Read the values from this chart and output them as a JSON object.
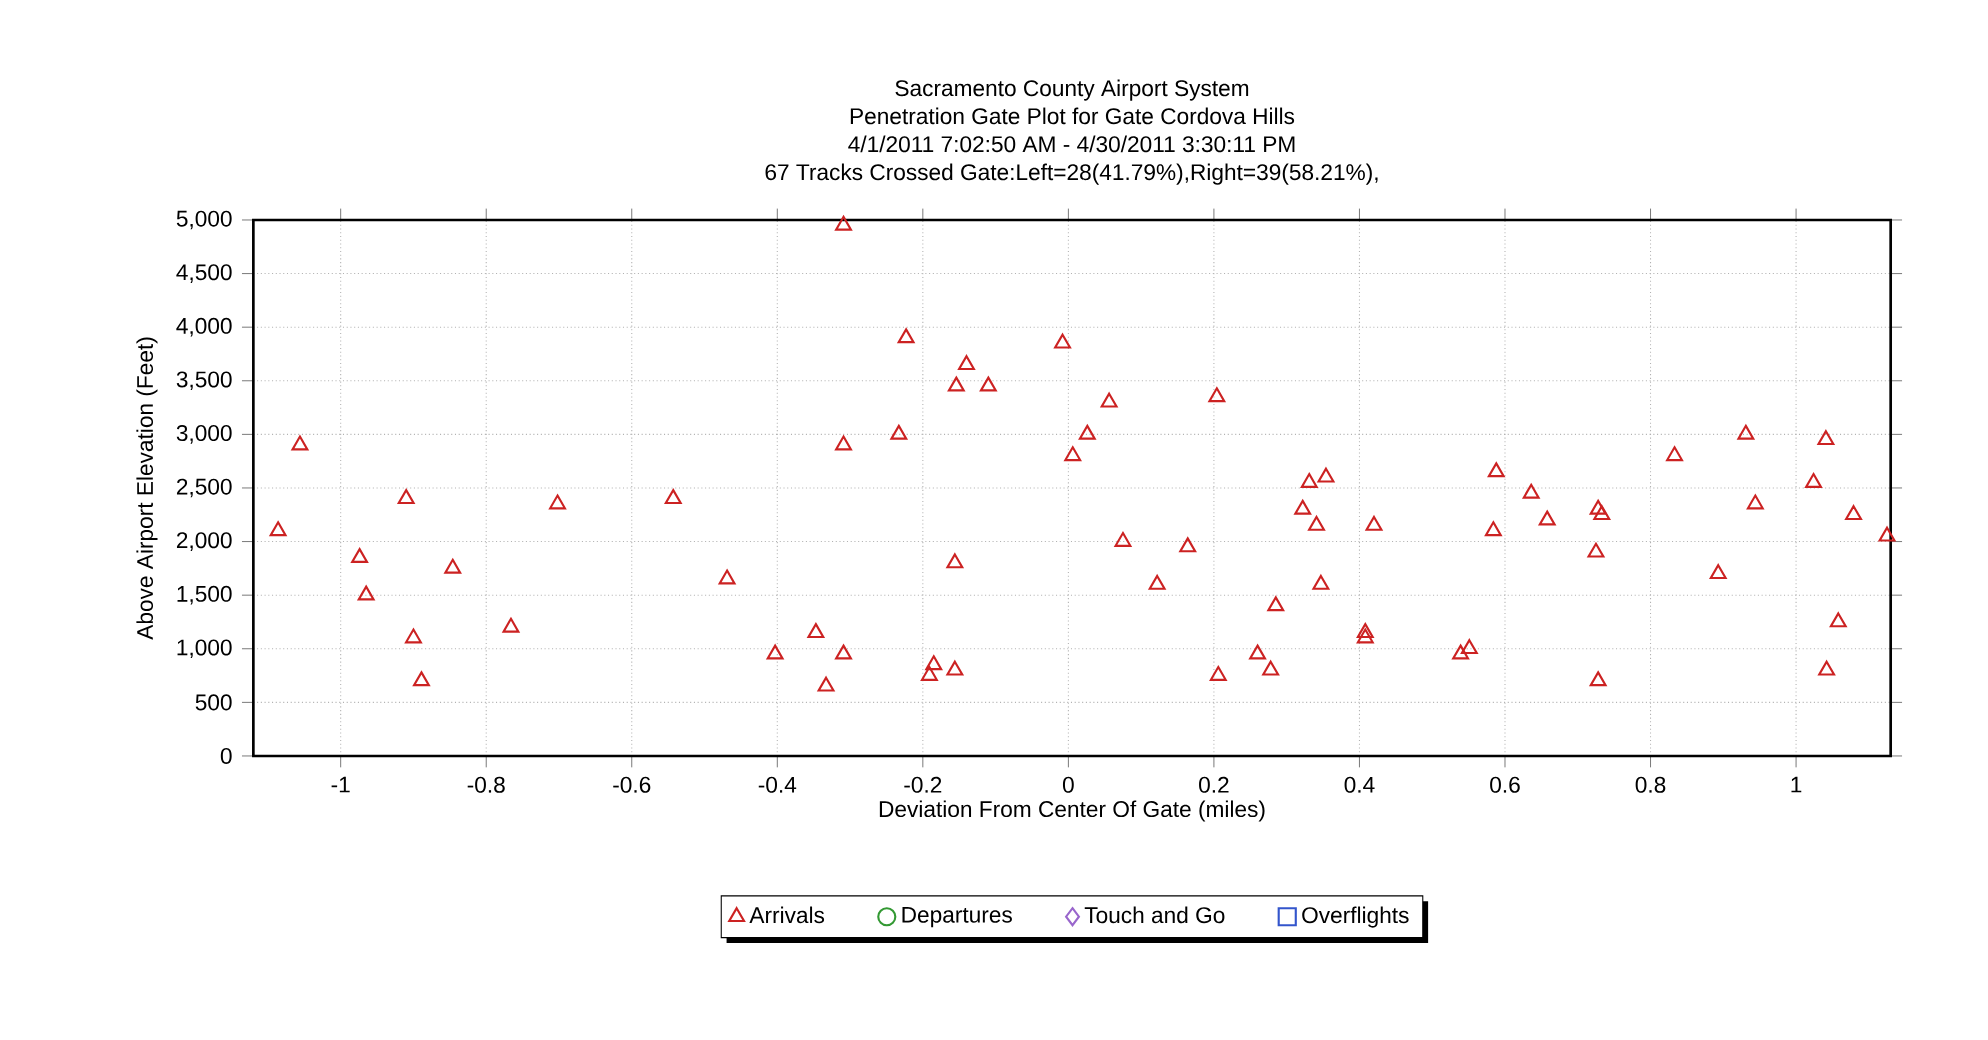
{
  "chart_data": {
    "type": "scatter",
    "title": "Sacramento County Airport System",
    "subtitle": "Penetration Gate Plot for Gate Cordova Hills",
    "annotations": [
      "4/1/2011 7:02:50 AM - 4/30/2011 3:30:11 PM",
      "67 Tracks Crossed Gate:Left=28(41.79%),Right=39(58.21%),"
    ],
    "xlabel": "Deviation From Center Of Gate (miles)",
    "ylabel": "Above Airport Elevation (Feet)",
    "xlim": [
      -1.12,
      1.13
    ],
    "ylim": [
      0,
      5000
    ],
    "xticks": [
      -1,
      -0.8,
      -0.6,
      -0.4,
      -0.2,
      0,
      0.2,
      0.4,
      0.6,
      0.8,
      1
    ],
    "yticks": [
      0,
      500,
      {
        "value": 1000,
        "label": "1,000"
      },
      {
        "value": 1500,
        "label": "1,500"
      },
      {
        "value": 2000,
        "label": "2,000"
      },
      {
        "value": 2500,
        "label": "2,500"
      },
      {
        "value": 3000,
        "label": "3,000"
      },
      {
        "value": 3500,
        "label": "3,500"
      },
      {
        "value": 4000,
        "label": "4,000"
      },
      {
        "value": 4500,
        "label": "4,500"
      },
      {
        "value": 5000,
        "label": "5,000"
      }
    ],
    "grid": true,
    "legend": "bottom",
    "series": [
      {
        "name": "Arrivals",
        "color": "#cc2222",
        "marker": "triangle",
        "x": [
          -1.086,
          -1.056,
          -0.974,
          -0.965,
          -0.91,
          -0.9,
          -0.889,
          -0.846,
          -0.766,
          -0.702,
          -0.543,
          -0.309,
          -0.223,
          -0.14,
          -0.154,
          -0.11,
          -0.008,
          0.056,
          0.204,
          0.026,
          0.006,
          -0.309,
          -0.233,
          -0.469,
          -0.156,
          0.075,
          0.164,
          0.122,
          0.285,
          -0.347,
          -0.403,
          -0.309,
          -0.333,
          -0.185,
          -0.191,
          -0.156,
          0.206,
          0.26,
          0.278,
          0.331,
          0.322,
          0.341,
          0.347,
          0.354,
          0.408,
          0.408,
          0.42,
          0.539,
          0.551,
          0.584,
          0.588,
          0.636,
          0.658,
          0.728,
          0.733,
          0.725,
          0.728,
          0.833,
          0.893,
          0.931,
          0.944,
          1.024,
          1.041,
          1.058,
          1.042,
          1.079,
          1.125
        ],
        "values": [
          2100,
          2900,
          1850,
          1500,
          2400,
          1100,
          700,
          1750,
          1200,
          2350,
          2400,
          4950,
          3900,
          3650,
          3450,
          3450,
          3850,
          3300,
          3350,
          3000,
          2800,
          2900,
          3000,
          1650,
          1800,
          2000,
          1950,
          1600,
          1400,
          1150,
          950,
          950,
          650,
          850,
          750,
          800,
          750,
          950,
          800,
          2550,
          2300,
          2150,
          1600,
          2600,
          1150,
          1100,
          2150,
          950,
          1000,
          2100,
          2650,
          2450,
          2200,
          2300,
          2250,
          1900,
          700,
          2800,
          1700,
          3000,
          2350,
          2550,
          2950,
          1250,
          800,
          2250,
          2050
        ]
      },
      {
        "name": "Departures",
        "color": "#339933",
        "marker": "circle"
      },
      {
        "name": "Touch and Go",
        "color": "#9966cc",
        "marker": "diamond"
      },
      {
        "name": "Overflights",
        "color": "#3355cc",
        "marker": "square"
      }
    ]
  }
}
